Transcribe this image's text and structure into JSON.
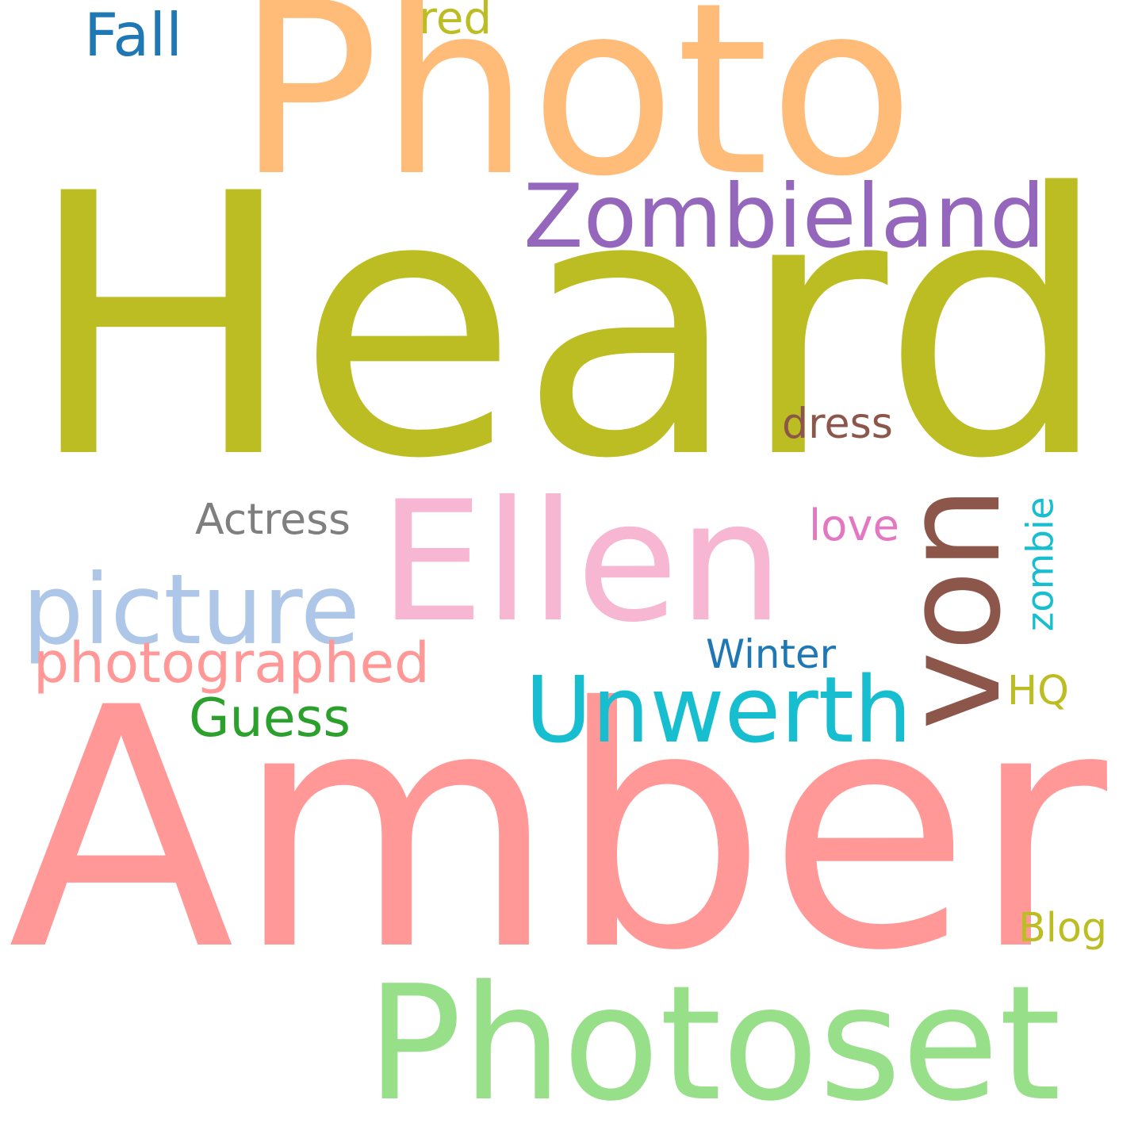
{
  "background": "#ffffff",
  "words": [
    {
      "text": "Heard",
      "color": "#bcbd22"
    },
    {
      "text": "Amber",
      "color": "#ff9896"
    },
    {
      "text": "Photo",
      "color": "#ffbb78"
    },
    {
      "text": "Photoset",
      "color": "#98df8a"
    },
    {
      "text": "Ellen",
      "color": "#f7b6d2"
    },
    {
      "text": "von",
      "color": "#8c564b"
    },
    {
      "text": "Unwerth",
      "color": "#17becf"
    },
    {
      "text": "Zombieland",
      "color": "#9467bd"
    },
    {
      "text": "picture",
      "color": "#aec7e8"
    },
    {
      "text": "photographed",
      "color": "#ff9896"
    },
    {
      "text": "Guess",
      "color": "#2ca02c"
    },
    {
      "text": "Winter",
      "color": "#1f77b4"
    },
    {
      "text": "HQ",
      "color": "#bcbd22"
    },
    {
      "text": "zombie",
      "color": "#17becf"
    },
    {
      "text": "Actress",
      "color": "#7f7f7f"
    },
    {
      "text": "love",
      "color": "#e377c2"
    },
    {
      "text": "dress",
      "color": "#8c564b"
    },
    {
      "text": "Blog",
      "color": "#bcbd22"
    },
    {
      "text": "Fall",
      "color": "#1f77b4"
    },
    {
      "text": "red",
      "color": "#bcbd22"
    }
  ]
}
